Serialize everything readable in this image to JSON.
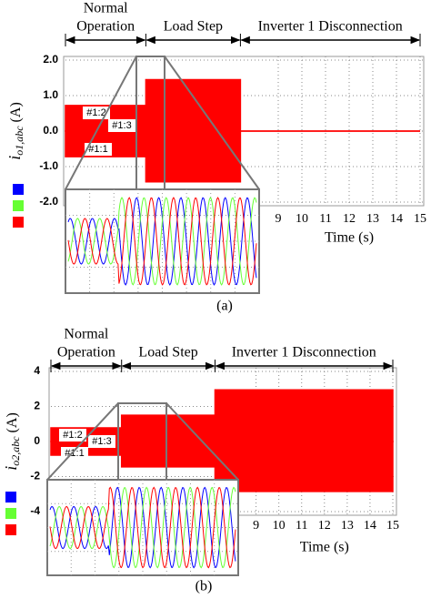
{
  "chart_data": [
    {
      "type": "envelope",
      "phase_labels": [
        [
          "Normal",
          "Operation"
        ],
        [
          "Load Step"
        ],
        [
          "Inverter 1 Disconnection"
        ]
      ],
      "phase_bounds": [
        0,
        3.4,
        7.4,
        15
      ],
      "x": [
        0,
        3.4,
        3.4,
        7.4,
        7.4,
        15
      ],
      "upper": [
        0.72,
        0.72,
        1.45,
        1.45,
        0,
        0
      ],
      "lower": [
        -0.72,
        -0.72,
        -1.43,
        -1.43,
        0,
        0
      ],
      "color": "#ff0000",
      "xlim": [
        0,
        15
      ],
      "xticks": [
        9,
        10,
        11,
        12,
        13,
        14,
        15
      ],
      "ylim": [
        -2,
        2
      ],
      "yticks": [
        {
          "value": 2,
          "label": "2.0"
        },
        {
          "value": 1,
          "label": "1.0"
        },
        {
          "value": 0,
          "label": "0.0"
        },
        {
          "value": -1,
          "label": "-1.0"
        },
        {
          "value": -2,
          "label": "-2.0"
        }
      ],
      "grid": true,
      "xlabel": "Time (s)",
      "ylabel": {
        "symbol": "i",
        "subscript": "o1,abc",
        "unit": " (A)"
      },
      "annotations": [
        "#1:2",
        "#1:3",
        "#1:1"
      ],
      "legend_colors": [
        "#0000ff",
        "#66ff33",
        "#ff0000"
      ],
      "caption": "(a)"
    },
    {
      "type": "envelope",
      "phase_labels": [
        [
          "Normal",
          "Operation"
        ],
        [
          "Load Step"
        ],
        [
          "Inverter 1 Disconnection"
        ]
      ],
      "phase_bounds": [
        0,
        3.1,
        7.2,
        15
      ],
      "x": [
        0,
        3.1,
        3.1,
        7.2,
        7.2,
        15
      ],
      "upper": [
        0.78,
        0.78,
        1.5,
        1.5,
        2.95,
        2.95
      ],
      "lower": [
        -0.78,
        -0.78,
        -1.45,
        -1.45,
        -2.85,
        -2.85
      ],
      "color": "#ff0000",
      "xlim": [
        0,
        15
      ],
      "xticks": [
        9,
        10,
        11,
        12,
        13,
        14,
        15
      ],
      "ylim": [
        -4,
        4
      ],
      "yticks": [
        4,
        2,
        0,
        -2,
        -4
      ],
      "grid": true,
      "xlabel": "Time (s)",
      "ylabel": {
        "symbol": "i",
        "subscript": "o2,abc",
        "unit": " (A)"
      },
      "annotations": [
        "#1:2",
        "#1:3",
        "#1:1"
      ],
      "legend_colors": [
        "#0000ff",
        "#66ff33",
        "#ff0000"
      ],
      "caption": "(b)"
    }
  ]
}
